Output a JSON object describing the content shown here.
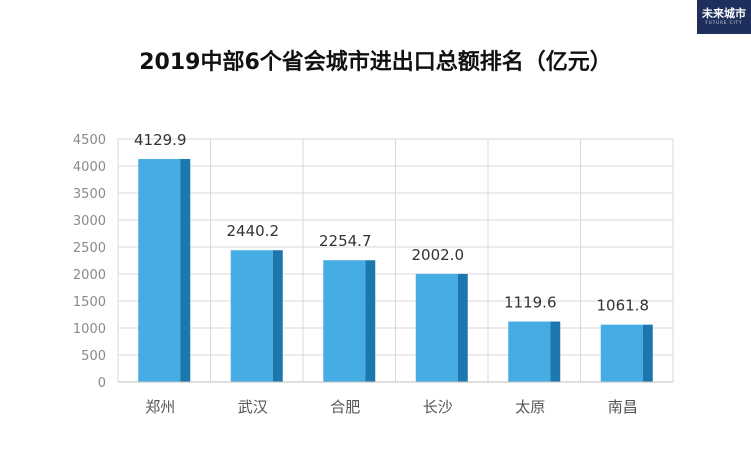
{
  "logo": {
    "text": "未来城市",
    "subtext": "FUTURE CITY"
  },
  "chart_data": {
    "type": "bar",
    "title": "2019中部6个省会城市进出口总额排名（亿元）",
    "categories": [
      "郑州",
      "武汉",
      "合肥",
      "长沙",
      "太原",
      "南昌"
    ],
    "values": [
      4129.9,
      2440.2,
      2254.7,
      2002.0,
      1119.6,
      1061.8
    ],
    "value_labels": [
      "4129.9",
      "2440.2",
      "2254.7",
      "2002.0",
      "1119.6",
      "1061.8"
    ],
    "ylim": [
      0,
      4500
    ],
    "yticks": [
      "0",
      "500",
      "1000",
      "1500",
      "2000",
      "2500",
      "3000",
      "3500",
      "4000",
      "4500"
    ],
    "grid": true,
    "bar_color": "#45ade3",
    "bar_shade_color": "#1b77ad",
    "xlabel": "",
    "ylabel": ""
  }
}
